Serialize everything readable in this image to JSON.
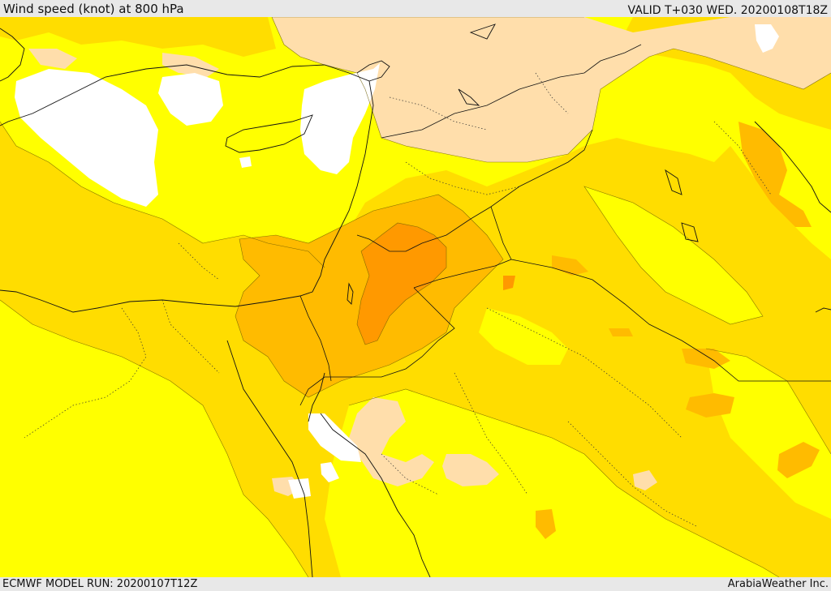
{
  "header": {
    "title": "Wind speed (knot) at 800 hPa",
    "valid": "VALID T+030 WED. 20200108T18Z"
  },
  "footer": {
    "model_run": "ECMWF MODEL RUN: 20200107T12Z",
    "credit": "ArabiaWeather Inc."
  },
  "map": {
    "field": "wind speed",
    "level": "800 hPa",
    "colors": {
      "below_threshold": "#ffffff",
      "band_1": "#ffdeab",
      "band_2": "#ffff00",
      "band_3": "#ffdd00",
      "band_4": "#ffbb00",
      "band_5": "#ff9900"
    }
  }
}
